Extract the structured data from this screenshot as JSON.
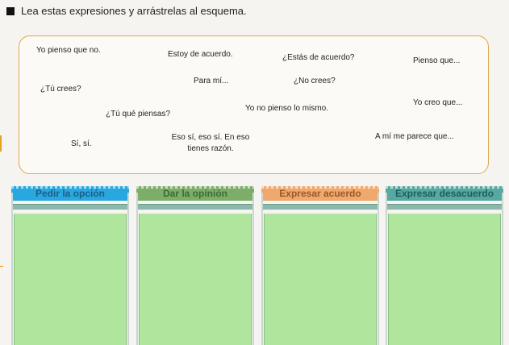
{
  "instruction": "Lea estas expresiones y arrástrelas al esquema.",
  "expressions": [
    "Yo pienso que no.",
    "Estoy de acuerdo.",
    "¿Estás de acuerdo?",
    "Pienso que...",
    "¿Tú crees?",
    "Para mí...",
    "¿No crees?",
    "¿Tú qué piensas?",
    "Yo no pienso lo mismo.",
    "Yo creo que...",
    "Sí, sí.",
    "Eso sí, eso sí. En eso tienes razón.",
    "A mí me parece que..."
  ],
  "columns": [
    {
      "label": "Pedir la opción",
      "header_color": "#29a8e0",
      "text_color": "#1b5f86"
    },
    {
      "label": "Dar la opinión",
      "header_color": "#7cae6a",
      "text_color": "#3d6b34"
    },
    {
      "label": "Expresar acuerdo",
      "header_color": "#f0a86c",
      "text_color": "#9a5a2a"
    },
    {
      "label": "Expresar desacuerdo",
      "header_color": "#56a8a0",
      "text_color": "#1f5f59"
    }
  ]
}
